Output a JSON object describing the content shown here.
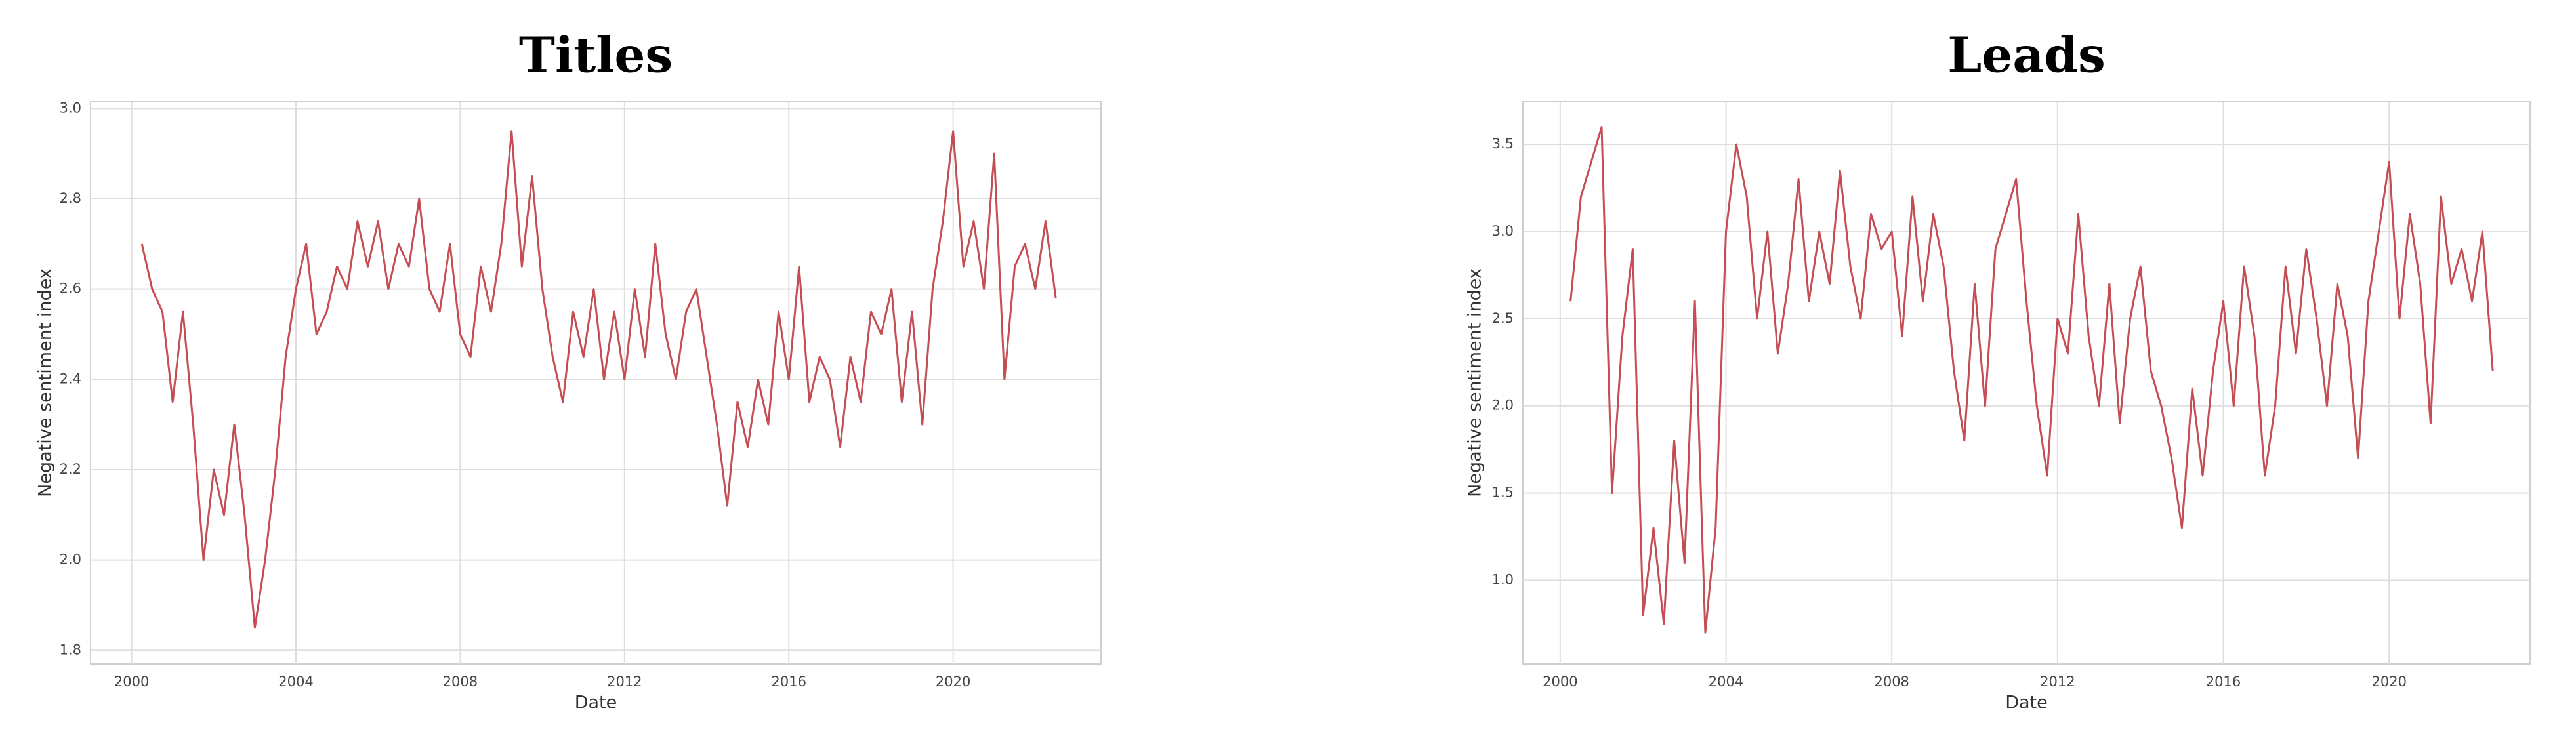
{
  "chart_data": [
    {
      "type": "line",
      "title": "Titles",
      "xlabel": "Date",
      "ylabel": "Negative sentiment index",
      "color": "#c44e52",
      "grid": true,
      "xlim": [
        1999.0,
        2023.6
      ],
      "xticks": [
        2000,
        2004,
        2008,
        2012,
        2016,
        2020
      ],
      "ylim": [
        1.77,
        3.015
      ],
      "yticks": [
        1.8,
        {
          "value": 2,
          "label": "2.0"
        },
        2.2,
        2.4,
        2.6,
        2.8,
        {
          "value": 3,
          "label": "3.0"
        }
      ],
      "x": [
        2000.25,
        2000.5,
        2000.75,
        2001,
        2001.25,
        2001.5,
        2001.75,
        2002,
        2002.25,
        2002.5,
        2002.75,
        2003,
        2003.25,
        2003.5,
        2003.75,
        2004,
        2004.25,
        2004.5,
        2004.75,
        2005,
        2005.25,
        2005.5,
        2005.75,
        2006,
        2006.25,
        2006.5,
        2006.75,
        2007,
        2007.25,
        2007.5,
        2007.75,
        2008,
        2008.25,
        2008.5,
        2008.75,
        2009,
        2009.25,
        2009.5,
        2009.75,
        2010,
        2010.25,
        2010.5,
        2010.75,
        2011,
        2011.25,
        2011.5,
        2011.75,
        2012,
        2012.25,
        2012.5,
        2012.75,
        2013,
        2013.25,
        2013.5,
        2013.75,
        2014,
        2014.25,
        2014.5,
        2014.75,
        2015,
        2015.25,
        2015.5,
        2015.75,
        2016,
        2016.25,
        2016.5,
        2016.75,
        2017,
        2017.25,
        2017.5,
        2017.75,
        2018,
        2018.25,
        2018.5,
        2018.75,
        2019,
        2019.25,
        2019.5,
        2019.75,
        2020,
        2020.25,
        2020.5,
        2020.75,
        2021,
        2021.25,
        2021.5,
        2021.75,
        2022,
        2022.25,
        2022.5
      ],
      "values": [
        2.7,
        2.6,
        2.55,
        2.35,
        2.55,
        2.3,
        2.0,
        2.2,
        2.1,
        2.3,
        2.1,
        1.85,
        2.0,
        2.2,
        2.45,
        2.6,
        2.7,
        2.5,
        2.55,
        2.65,
        2.6,
        2.75,
        2.65,
        2.75,
        2.6,
        2.7,
        2.65,
        2.8,
        2.6,
        2.55,
        2.7,
        2.5,
        2.45,
        2.65,
        2.55,
        2.7,
        2.95,
        2.65,
        2.85,
        2.6,
        2.45,
        2.35,
        2.55,
        2.45,
        2.6,
        2.4,
        2.55,
        2.4,
        2.6,
        2.45,
        2.7,
        2.5,
        2.4,
        2.55,
        2.6,
        2.45,
        2.3,
        2.12,
        2.35,
        2.25,
        2.4,
        2.3,
        2.55,
        2.4,
        2.65,
        2.35,
        2.45,
        2.4,
        2.25,
        2.45,
        2.35,
        2.55,
        2.5,
        2.6,
        2.35,
        2.55,
        2.3,
        2.6,
        2.75,
        2.95,
        2.65,
        2.75,
        2.6,
        2.9,
        2.4,
        2.65,
        2.7,
        2.6,
        2.75,
        2.58
      ]
    },
    {
      "type": "line",
      "title": "Leads",
      "xlabel": "Date",
      "ylabel": "Negative sentiment index",
      "color": "#c44e52",
      "grid": true,
      "xlim": [
        1999.1,
        2023.4
      ],
      "xticks": [
        2000,
        2004,
        2008,
        2012,
        2016,
        2020
      ],
      "ylim": [
        0.52,
        3.745
      ],
      "yticks": [
        {
          "value": 1,
          "label": "1.0"
        },
        1.5,
        {
          "value": 2,
          "label": "2.0"
        },
        2.5,
        {
          "value": 3,
          "label": "3.0"
        },
        3.5
      ],
      "x": [
        2000.25,
        2000.5,
        2000.75,
        2001,
        2001.25,
        2001.5,
        2001.75,
        2002,
        2002.25,
        2002.5,
        2002.75,
        2003,
        2003.25,
        2003.5,
        2003.75,
        2004,
        2004.25,
        2004.5,
        2004.75,
        2005,
        2005.25,
        2005.5,
        2005.75,
        2006,
        2006.25,
        2006.5,
        2006.75,
        2007,
        2007.25,
        2007.5,
        2007.75,
        2008,
        2008.25,
        2008.5,
        2008.75,
        2009,
        2009.25,
        2009.5,
        2009.75,
        2010,
        2010.25,
        2010.5,
        2010.75,
        2011,
        2011.25,
        2011.5,
        2011.75,
        2012,
        2012.25,
        2012.5,
        2012.75,
        2013,
        2013.25,
        2013.5,
        2013.75,
        2014,
        2014.25,
        2014.5,
        2014.75,
        2015,
        2015.25,
        2015.5,
        2015.75,
        2016,
        2016.25,
        2016.5,
        2016.75,
        2017,
        2017.25,
        2017.5,
        2017.75,
        2018,
        2018.25,
        2018.5,
        2018.75,
        2019,
        2019.25,
        2019.5,
        2019.75,
        2020,
        2020.25,
        2020.5,
        2020.75,
        2021,
        2021.25,
        2021.5,
        2021.75,
        2022,
        2022.25,
        2022.5
      ],
      "values": [
        2.6,
        3.2,
        3.4,
        3.6,
        1.5,
        2.4,
        2.9,
        0.8,
        1.3,
        0.75,
        1.8,
        1.1,
        2.6,
        0.7,
        1.3,
        3.0,
        3.5,
        3.2,
        2.5,
        3.0,
        2.3,
        2.7,
        3.3,
        2.6,
        3.0,
        2.7,
        3.35,
        2.8,
        2.5,
        3.1,
        2.9,
        3.0,
        2.4,
        3.2,
        2.6,
        3.1,
        2.8,
        2.2,
        1.8,
        2.7,
        2.0,
        2.9,
        3.1,
        3.3,
        2.6,
        2.0,
        1.6,
        2.5,
        2.3,
        3.1,
        2.4,
        2.0,
        2.7,
        1.9,
        2.5,
        2.8,
        2.2,
        2.0,
        1.7,
        1.3,
        2.1,
        1.6,
        2.2,
        2.6,
        2.0,
        2.8,
        2.4,
        1.6,
        2.0,
        2.8,
        2.3,
        2.9,
        2.5,
        2.0,
        2.7,
        2.4,
        1.7,
        2.6,
        3.0,
        3.4,
        2.5,
        3.1,
        2.7,
        1.9,
        3.2,
        2.7,
        2.9,
        2.6,
        3.0,
        2.2
      ]
    }
  ]
}
